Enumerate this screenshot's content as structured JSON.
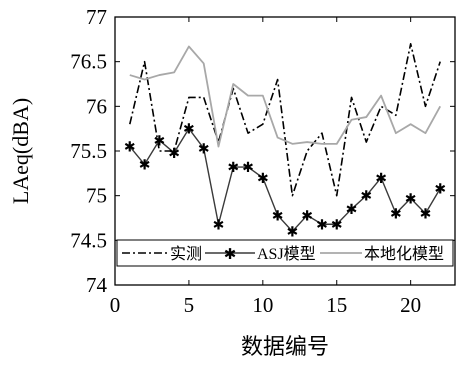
{
  "chart_data": {
    "type": "line",
    "title": "",
    "xlabel": "数据编号",
    "ylabel": "LAeq(dBA)",
    "xlim": [
      0,
      23
    ],
    "ylim": [
      74,
      77
    ],
    "x_ticks": [
      0,
      5,
      10,
      15,
      20
    ],
    "y_ticks": [
      74,
      74.5,
      75,
      75.5,
      76,
      76.5,
      77
    ],
    "grid": false,
    "legend_position": "bottom",
    "x": [
      1,
      2,
      3,
      4,
      5,
      6,
      7,
      8,
      9,
      10,
      11,
      12,
      13,
      14,
      15,
      16,
      17,
      18,
      19,
      20,
      21,
      22
    ],
    "series": [
      {
        "name": "实测",
        "style": "dash-dot",
        "color": "#000000",
        "values": [
          75.8,
          76.5,
          75.5,
          75.5,
          76.1,
          76.1,
          75.6,
          76.2,
          75.7,
          75.8,
          76.3,
          75.0,
          75.5,
          75.7,
          75.0,
          76.1,
          75.6,
          76.0,
          75.9,
          76.7,
          76.0,
          76.5
        ]
      },
      {
        "name": "ASJ模型",
        "style": "star-marker",
        "color": "#3a3a3a",
        "values": [
          75.55,
          75.35,
          75.62,
          75.48,
          75.75,
          75.53,
          74.68,
          75.32,
          75.32,
          75.2,
          74.78,
          74.6,
          74.78,
          74.68,
          74.68,
          74.85,
          75.0,
          75.2,
          74.8,
          74.97,
          74.8,
          75.08
        ]
      },
      {
        "name": "本地化模型",
        "style": "solid",
        "color": "#a8a8a8",
        "values": [
          76.35,
          76.3,
          76.35,
          76.38,
          76.67,
          76.48,
          75.55,
          76.25,
          76.12,
          76.12,
          75.65,
          75.58,
          75.6,
          75.58,
          75.58,
          75.85,
          75.88,
          76.12,
          75.7,
          75.8,
          75.7,
          76.0
        ]
      }
    ]
  }
}
